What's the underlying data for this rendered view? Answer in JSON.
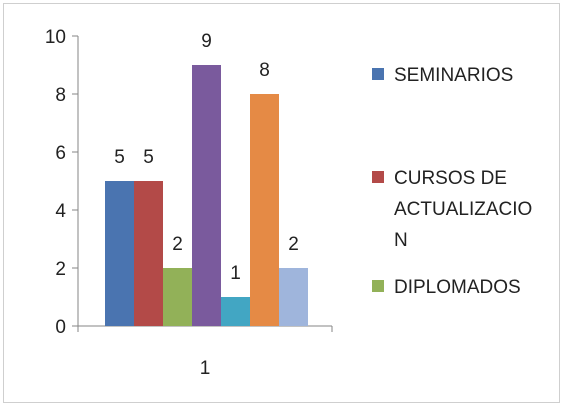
{
  "chart_data": {
    "type": "bar",
    "categories": [
      "1"
    ],
    "ylim": [
      0,
      10
    ],
    "yticks": [
      "0",
      "2",
      "4",
      "6",
      "8",
      "10"
    ],
    "grid": false,
    "legend_position": "right",
    "series": [
      {
        "name": "SEMINARIOS",
        "values": [
          5
        ],
        "color": "#4a74b0"
      },
      {
        "name": "CURSOS DE ACTUALIZACION",
        "values": [
          5
        ],
        "color": "#b34a48"
      },
      {
        "name": "DIPLOMADOS",
        "values": [
          2
        ],
        "color": "#92b158"
      },
      {
        "name": "",
        "values": [
          9
        ],
        "color": "#7a5a9d"
      },
      {
        "name": "",
        "values": [
          1
        ],
        "color": "#42a6c3"
      },
      {
        "name": "",
        "values": [
          8
        ],
        "color": "#e58a45"
      },
      {
        "name": "",
        "values": [
          2
        ],
        "color": "#9fb5dc"
      }
    ],
    "legend_lines": [
      [
        "SEMINARIOS"
      ],
      [
        "CURSOS DE",
        "ACTUALIZACIO",
        "N"
      ],
      [
        "DIPLOMADOS"
      ]
    ],
    "data_labels": [
      "5",
      "5",
      "2",
      "9",
      "1",
      "8",
      "2"
    ]
  }
}
